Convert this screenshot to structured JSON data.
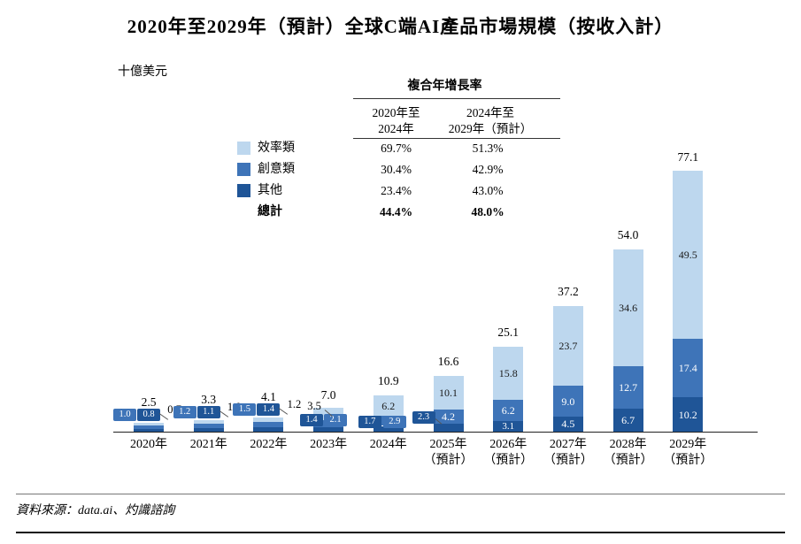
{
  "title": "2020年至2029年（預計）全球C端AI產品市場規模（按收入計）",
  "unit_label": "十億美元",
  "cagr_table": {
    "title": "複合年增長率",
    "col1_header": [
      "2020年至",
      "2024年"
    ],
    "col2_header": [
      "2024年至",
      "2029年（預計）"
    ],
    "rows": [
      {
        "label": "效率類",
        "cagr_2020_2024": "69.7%",
        "cagr_2024_2029": "51.3%",
        "bold": false
      },
      {
        "label": "創意類",
        "cagr_2020_2024": "30.4%",
        "cagr_2024_2029": "42.9%",
        "bold": false
      },
      {
        "label": "其他",
        "cagr_2020_2024": "23.4%",
        "cagr_2024_2029": "43.0%",
        "bold": false
      },
      {
        "label": "總計",
        "cagr_2020_2024": "44.4%",
        "cagr_2024_2029": "48.0%",
        "bold": true
      }
    ]
  },
  "legend": [
    {
      "label": "效率類",
      "color": "#BDD7EE"
    },
    {
      "label": "創意類",
      "color": "#3E74B8"
    },
    {
      "label": "其他",
      "color": "#1F5597"
    }
  ],
  "chart_data": {
    "type": "bar",
    "stacked": true,
    "title": "2020年至2029年（預計）全球C端AI產品市場規模（按收入計）",
    "ylabel": "十億美元",
    "ylim": [
      0,
      80
    ],
    "grid": false,
    "legend_position": "upper-left",
    "categories": [
      "2020年",
      "2021年",
      "2022年",
      "2023年",
      "2024年",
      "2025年（預計）",
      "2026年（預計）",
      "2027年（預計）",
      "2028年（預計）",
      "2029年（預計）"
    ],
    "series": [
      {
        "name": "其他",
        "key": "other",
        "color": "#1F5597",
        "values": [
          0.8,
          1.1,
          1.4,
          1.4,
          1.7,
          2.3,
          3.1,
          4.5,
          6.7,
          10.2
        ]
      },
      {
        "name": "創意類",
        "key": "creative",
        "color": "#3E74B8",
        "values": [
          1.0,
          1.2,
          1.5,
          2.1,
          2.9,
          4.2,
          6.2,
          9.0,
          12.7,
          17.4
        ]
      },
      {
        "name": "效率類",
        "key": "efficiency",
        "color": "#BDD7EE",
        "values": [
          0.7,
          1.0,
          1.2,
          3.5,
          6.2,
          10.1,
          15.8,
          23.7,
          34.6,
          49.5
        ]
      }
    ],
    "totals": [
      2.5,
      3.3,
      4.1,
      7.0,
      10.9,
      16.6,
      25.1,
      37.2,
      54.0,
      77.1
    ]
  },
  "source": "資料來源：data.ai、灼識諮詢"
}
